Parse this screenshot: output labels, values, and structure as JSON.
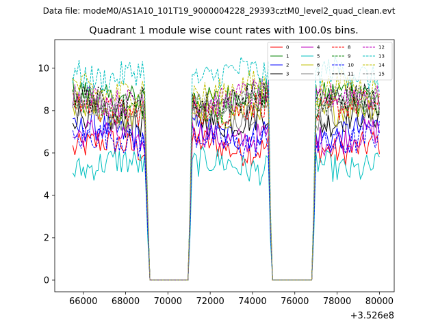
{
  "chart_data": {
    "type": "line",
    "suptitle": "Data file: modeM0/AS1A10_101T19_9000004228_29393cztM0_level2_quad_clean.evt",
    "title": "Quadrant 1 module wise count rates with 100.0s bins.",
    "xlabel": "",
    "ylabel": "",
    "x_offset_label": "+3.526e8",
    "xlim": [
      64650,
      80700
    ],
    "ylim": [
      -0.55,
      11.35
    ],
    "x_ticks": [
      66000,
      68000,
      70000,
      72000,
      74000,
      76000,
      78000,
      80000
    ],
    "x_tick_labels": [
      "66000",
      "68000",
      "70000",
      "72000",
      "74000",
      "76000",
      "78000",
      "80000"
    ],
    "y_ticks": [
      0,
      2,
      4,
      6,
      8,
      10
    ],
    "y_tick_labels": [
      "0",
      "2",
      "4",
      "6",
      "8",
      "10"
    ],
    "legend_position": "top-right",
    "bin_seconds": 100,
    "on_intervals": [
      [
        65500,
        68950
      ],
      [
        71150,
        74750
      ],
      [
        77000,
        80000
      ]
    ],
    "gap_level": 0,
    "series": [
      {
        "name": "0",
        "color": "#ff0000",
        "dash": "solid",
        "mean": 6.3
      },
      {
        "name": "1",
        "color": "#008000",
        "dash": "solid",
        "mean": 8.7
      },
      {
        "name": "2",
        "color": "#0000ff",
        "dash": "solid",
        "mean": 7.0
      },
      {
        "name": "3",
        "color": "#000000",
        "dash": "solid",
        "mean": 7.6
      },
      {
        "name": "4",
        "color": "#bf00bf",
        "dash": "solid",
        "mean": 6.8
      },
      {
        "name": "5",
        "color": "#00bfbf",
        "dash": "solid",
        "mean": 5.4
      },
      {
        "name": "6",
        "color": "#bfbf00",
        "dash": "solid",
        "mean": 8.0
      },
      {
        "name": "7",
        "color": "#808080",
        "dash": "solid",
        "mean": 7.9
      },
      {
        "name": "8",
        "color": "#ff0000",
        "dash": "dashed",
        "mean": 8.1
      },
      {
        "name": "9",
        "color": "#008000",
        "dash": "dashed",
        "mean": 8.3
      },
      {
        "name": "10",
        "color": "#0000ff",
        "dash": "dashed",
        "mean": 6.6
      },
      {
        "name": "11",
        "color": "#000000",
        "dash": "dashed",
        "mean": 8.5
      },
      {
        "name": "12",
        "color": "#bf00bf",
        "dash": "dashed",
        "mean": 8.6
      },
      {
        "name": "13",
        "color": "#00bfbf",
        "dash": "dashed",
        "mean": 9.7
      },
      {
        "name": "14",
        "color": "#bfbf00",
        "dash": "dashed",
        "mean": 9.0
      },
      {
        "name": "15",
        "color": "#808080",
        "dash": "dashed",
        "mean": 8.4
      }
    ]
  }
}
